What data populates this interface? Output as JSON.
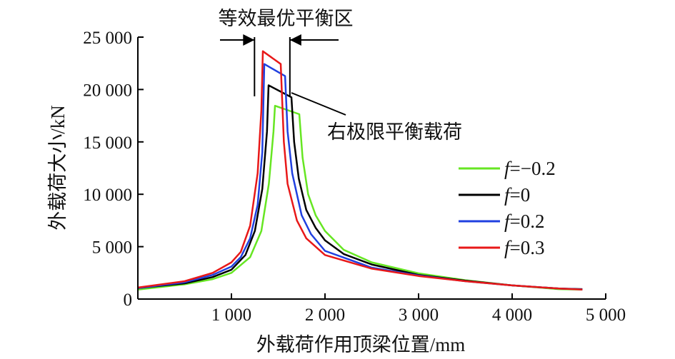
{
  "chart_data": {
    "type": "line",
    "title": "",
    "xlabel": "外载荷作用顶梁位置/mm",
    "ylabel": "外载荷大小/kN",
    "xlim": [
      0,
      5000
    ],
    "ylim": [
      0,
      25000
    ],
    "xticks": [
      1000,
      2000,
      3000,
      4000,
      5000
    ],
    "xtick_labels": [
      "1 000",
      "2 000",
      "3 000",
      "4 000",
      "5 000"
    ],
    "yticks": [
      0,
      5000,
      10000,
      15000,
      20000,
      25000
    ],
    "ytick_labels": [
      "0",
      "5 000",
      "10 000",
      "15 000",
      "20 000",
      "25 000"
    ],
    "grid": false,
    "legend_position": "right",
    "annotations": {
      "zone_label": "等效最优平衡区",
      "zone_x": [
        1300,
        1640
      ],
      "right_limit_label": "右极限平衡载荷"
    },
    "series": [
      {
        "name": "f=−0.2",
        "name_prefix": "f",
        "name_suffix": "=−0.2",
        "color": "#66e622",
        "x": [
          0,
          500,
          800,
          1000,
          1200,
          1320,
          1400,
          1450,
          1466,
          1725,
          1760,
          1820,
          1900,
          2000,
          2200,
          2500,
          3000,
          3500,
          4000,
          4500,
          4750
        ],
        "y": [
          900,
          1400,
          1900,
          2500,
          4000,
          6500,
          11000,
          16000,
          18450,
          17640,
          13500,
          10000,
          8000,
          6500,
          4700,
          3500,
          2450,
          1800,
          1300,
          950,
          900
        ]
      },
      {
        "name": "f=0",
        "name_prefix": "f",
        "name_suffix": "=0",
        "color": "#000000",
        "x": [
          0,
          500,
          800,
          1000,
          1150,
          1250,
          1330,
          1380,
          1397,
          1641,
          1670,
          1720,
          1800,
          1900,
          2000,
          2200,
          2500,
          3000,
          3500,
          4000,
          4500,
          4750
        ],
        "y": [
          1050,
          1500,
          2100,
          2800,
          4200,
          6500,
          10500,
          16000,
          20400,
          19260,
          15000,
          11500,
          8500,
          6800,
          5600,
          4300,
          3300,
          2300,
          1750,
          1300,
          1000,
          950
        ]
      },
      {
        "name": "f=0.2",
        "name_prefix": "f",
        "name_suffix": "=0.2",
        "color": "#2040e0",
        "x": [
          0,
          500,
          800,
          1000,
          1100,
          1200,
          1280,
          1330,
          1351,
          1573,
          1600,
          1650,
          1750,
          1850,
          2000,
          2500,
          3000,
          3500,
          4000,
          4500,
          4750
        ],
        "y": [
          1050,
          1600,
          2300,
          3100,
          4000,
          5800,
          9000,
          14000,
          22430,
          21280,
          16000,
          12000,
          8000,
          6200,
          4600,
          3000,
          2250,
          1700,
          1300,
          1000,
          920
        ]
      },
      {
        "name": "f=0.3",
        "name_prefix": "f",
        "name_suffix": "=0.3",
        "color": "#e81818",
        "x": [
          0,
          500,
          800,
          1000,
          1100,
          1200,
          1280,
          1320,
          1336,
          1527,
          1560,
          1600,
          1700,
          1800,
          2000,
          2500,
          3000,
          3500,
          4000,
          4500,
          4750
        ],
        "y": [
          1100,
          1700,
          2500,
          3500,
          4500,
          7000,
          12000,
          18000,
          23650,
          22430,
          15000,
          11000,
          7500,
          5800,
          4200,
          2900,
          2200,
          1700,
          1300,
          1000,
          900
        ]
      }
    ]
  }
}
